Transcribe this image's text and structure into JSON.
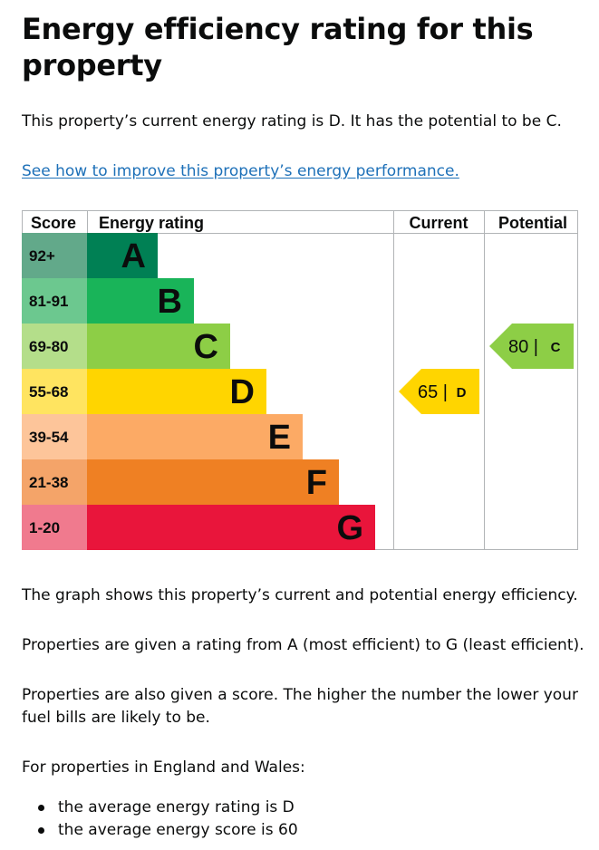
{
  "heading": "Energy efficiency rating for this property",
  "intro": "This property’s current energy rating is D. It has the potential to be C.",
  "improve_link": "See how to improve this property’s energy performance.",
  "chart_data": {
    "type": "table",
    "headers": {
      "score": "Score",
      "rating": "Energy rating",
      "current": "Current",
      "potential": "Potential"
    },
    "bands": [
      {
        "score": "92+",
        "letter": "A",
        "color": "#008054",
        "score_bg": "#62a98a"
      },
      {
        "score": "81-91",
        "letter": "B",
        "color": "#19b459",
        "score_bg": "#6cc88f"
      },
      {
        "score": "69-80",
        "letter": "C",
        "color": "#8dce46",
        "score_bg": "#b4de8a"
      },
      {
        "score": "55-68",
        "letter": "D",
        "color": "#ffd500",
        "score_bg": "#ffe460"
      },
      {
        "score": "39-54",
        "letter": "E",
        "color": "#fcaa65",
        "score_bg": "#fdc59a"
      },
      {
        "score": "21-38",
        "letter": "F",
        "color": "#ef8023",
        "score_bg": "#f4a469"
      },
      {
        "score": "1-20",
        "letter": "G",
        "color": "#e9153b",
        "score_bg": "#f07a8e"
      }
    ],
    "current": {
      "value": 65,
      "letter": "D",
      "text": "65 |"
    },
    "potential": {
      "value": 80,
      "letter": "C",
      "text": "80 |"
    }
  },
  "paragraphs": [
    "The graph shows this property’s current and potential energy efficiency.",
    "Properties are given a rating from A (most efficient) to G (least efficient).",
    "Properties are also given a score. The higher the number the lower your fuel bills are likely to be.",
    "For properties in England and Wales:"
  ],
  "averages": [
    "the average energy rating is D",
    "the average energy score is 60"
  ]
}
